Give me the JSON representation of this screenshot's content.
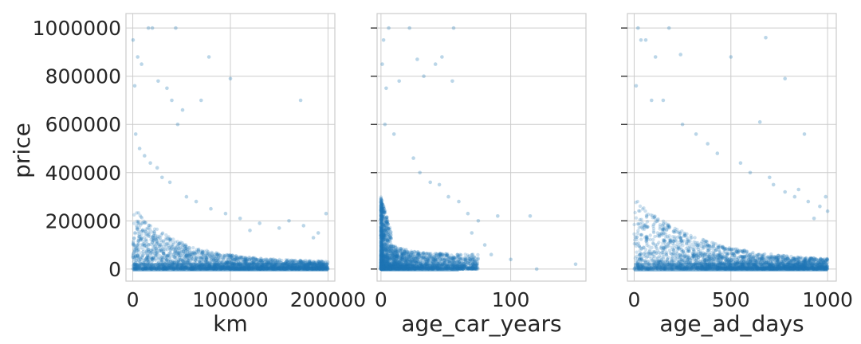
{
  "chart_data": [
    {
      "type": "scatter",
      "xlabel": "km",
      "ylabel": "price",
      "xticks": [
        0,
        100000,
        200000
      ],
      "xlim": [
        -7000,
        207000
      ],
      "yticks": [
        0,
        200000,
        400000,
        600000,
        800000,
        1000000
      ],
      "ylim": [
        -50000,
        1060000
      ],
      "grid": true,
      "color": "#1f77b4",
      "points": [
        [
          300,
          950000
        ],
        [
          2000,
          760000
        ],
        [
          5000,
          880000
        ],
        [
          9000,
          850000
        ],
        [
          16000,
          1000000
        ],
        [
          20000,
          1000000
        ],
        [
          26000,
          780000
        ],
        [
          35000,
          750000
        ],
        [
          40000,
          700000
        ],
        [
          44000,
          1000000
        ],
        [
          46000,
          600000
        ],
        [
          51000,
          660000
        ],
        [
          70000,
          700000
        ],
        [
          78000,
          880000
        ],
        [
          100000,
          790000
        ],
        [
          172000,
          700000
        ],
        [
          3000,
          560000
        ],
        [
          7000,
          500000
        ],
        [
          12000,
          470000
        ],
        [
          18000,
          440000
        ],
        [
          25000,
          420000
        ],
        [
          30000,
          380000
        ],
        [
          38000,
          360000
        ],
        [
          55000,
          300000
        ],
        [
          65000,
          280000
        ],
        [
          80000,
          250000
        ],
        [
          95000,
          230000
        ],
        [
          110000,
          210000
        ],
        [
          130000,
          190000
        ],
        [
          150000,
          170000
        ],
        [
          160000,
          200000
        ],
        [
          175000,
          180000
        ],
        [
          190000,
          150000
        ],
        [
          198000,
          230000
        ],
        [
          185000,
          130000
        ],
        [
          120000,
          160000
        ]
      ]
    },
    {
      "type": "scatter",
      "xlabel": "age_car_years",
      "xticks": [
        0,
        100
      ],
      "xlim": [
        -3,
        158
      ],
      "yticks": [
        0,
        200000,
        400000,
        600000,
        800000,
        1000000
      ],
      "ylim": [
        -50000,
        1060000
      ],
      "grid": true,
      "color": "#1f77b4",
      "points": [
        [
          2,
          950000
        ],
        [
          1,
          850000
        ],
        [
          4,
          750000
        ],
        [
          6,
          1000000
        ],
        [
          14,
          780000
        ],
        [
          22,
          1000000
        ],
        [
          28,
          870000
        ],
        [
          33,
          800000
        ],
        [
          42,
          850000
        ],
        [
          47,
          880000
        ],
        [
          55,
          780000
        ],
        [
          56,
          1000000
        ],
        [
          3,
          600000
        ],
        [
          10,
          560000
        ],
        [
          25,
          460000
        ],
        [
          30,
          400000
        ],
        [
          38,
          360000
        ],
        [
          45,
          350000
        ],
        [
          52,
          300000
        ],
        [
          60,
          280000
        ],
        [
          67,
          230000
        ],
        [
          75,
          200000
        ],
        [
          90,
          220000
        ],
        [
          115,
          220000
        ],
        [
          120,
          0
        ],
        [
          150,
          20000
        ],
        [
          100,
          40000
        ],
        [
          85,
          60000
        ],
        [
          80,
          100000
        ],
        [
          70,
          150000
        ]
      ]
    },
    {
      "type": "scatter",
      "xlabel": "age_ad_days",
      "xticks": [
        0,
        500,
        1000
      ],
      "xlim": [
        -35,
        1045
      ],
      "yticks": [
        0,
        200000,
        400000,
        600000,
        800000,
        1000000
      ],
      "ylim": [
        -50000,
        1060000
      ],
      "grid": true,
      "color": "#1f77b4",
      "points": [
        [
          20,
          1000000
        ],
        [
          35,
          950000
        ],
        [
          60,
          950000
        ],
        [
          110,
          880000
        ],
        [
          180,
          1000000
        ],
        [
          240,
          890000
        ],
        [
          500,
          880000
        ],
        [
          680,
          960000
        ],
        [
          780,
          790000
        ],
        [
          10,
          760000
        ],
        [
          90,
          700000
        ],
        [
          150,
          700000
        ],
        [
          250,
          600000
        ],
        [
          320,
          560000
        ],
        [
          380,
          520000
        ],
        [
          430,
          480000
        ],
        [
          550,
          440000
        ],
        [
          600,
          400000
        ],
        [
          700,
          380000
        ],
        [
          720,
          350000
        ],
        [
          780,
          320000
        ],
        [
          830,
          300000
        ],
        [
          900,
          280000
        ],
        [
          960,
          260000
        ],
        [
          1000,
          240000
        ],
        [
          650,
          610000
        ],
        [
          880,
          560000
        ],
        [
          930,
          210000
        ],
        [
          850,
          330000
        ],
        [
          990,
          300000
        ]
      ]
    }
  ]
}
